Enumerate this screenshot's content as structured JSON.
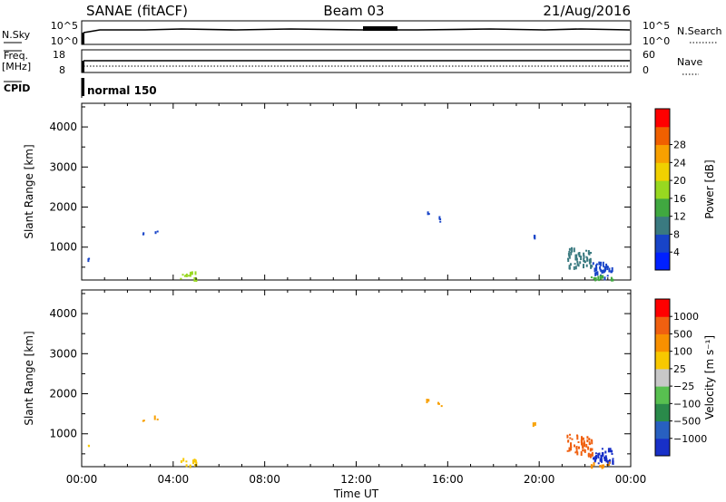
{
  "header": {
    "station": "SANAE (fitACF)",
    "beam": "Beam 03",
    "date": "21/Aug/2016"
  },
  "top_panels": {
    "nsky_label": "N.Sky",
    "nsearch_label": "N.Search",
    "nsky_ticks": [
      "10^5",
      "10^0"
    ],
    "nsearch_ticks": [
      "10^5",
      "10^0"
    ],
    "freq_label_1": "Freq.",
    "freq_label_2": "[MHz]",
    "freq_ticks": [
      "18",
      "8"
    ],
    "nave_label": "Nave",
    "nave_ticks": [
      "60",
      "0"
    ],
    "cpid_label": "CPID",
    "cpid_value": "normal 150"
  },
  "chart_data": [
    {
      "type": "heatmap",
      "name": "power-panel",
      "ylabel": "Slant Range [km]",
      "xlabel": "",
      "ylim": [
        180,
        4590
      ],
      "yticks": [
        1000,
        2000,
        3000,
        4000
      ],
      "xlim_hours": [
        0,
        24
      ],
      "colorbar": {
        "label": "Power [dB]",
        "tick_labels": [
          "4",
          "8",
          "12",
          "16",
          "20",
          "24",
          "28"
        ],
        "colors": [
          "#0020ff",
          "#1844c8",
          "#3a7a80",
          "#40a840",
          "#98d820",
          "#f0d000",
          "#f8a000",
          "#f06000",
          "#ff0000"
        ]
      },
      "echo_clusters": [
        {
          "t": [
            2.6,
            2.72
          ],
          "r": [
            1300,
            1380
          ],
          "color": "#1844c8"
        },
        {
          "t": [
            3.15,
            3.3
          ],
          "r": [
            1380,
            1460
          ],
          "color": "#1844c8"
        },
        {
          "t": [
            0.25,
            0.3
          ],
          "r": [
            700,
            740
          ],
          "color": "#1844c8"
        },
        {
          "t": [
            15.05,
            15.15
          ],
          "r": [
            1850,
            1900
          ],
          "color": "#1844c8"
        },
        {
          "t": [
            15.55,
            15.75
          ],
          "r": [
            1650,
            1800
          ],
          "color": "#1844c8"
        },
        {
          "t": [
            19.7,
            19.85
          ],
          "r": [
            1250,
            1320
          ],
          "color": "#1844c8"
        },
        {
          "t": [
            21.2,
            22.3
          ],
          "r": [
            500,
            1000
          ],
          "color": "#3a7a80"
        },
        {
          "t": [
            22.3,
            23.2
          ],
          "r": [
            250,
            650
          ],
          "color": "#1844c8"
        },
        {
          "t": [
            22.2,
            23.2
          ],
          "r": [
            190,
            310
          ],
          "color": "#40a840"
        },
        {
          "t": [
            4.3,
            5.0
          ],
          "r": [
            200,
            400
          ],
          "color": "#98d820"
        }
      ]
    },
    {
      "type": "heatmap",
      "name": "velocity-panel",
      "ylabel": "Slant Range [km]",
      "xlabel": "Time UT",
      "ylim": [
        180,
        4590
      ],
      "yticks": [
        1000,
        2000,
        3000,
        4000
      ],
      "xlim_hours": [
        0,
        24
      ],
      "xtick_labels": [
        "00:00",
        "04:00",
        "08:00",
        "12:00",
        "16:00",
        "20:00",
        "00:00"
      ],
      "colorbar": {
        "label": "Velocity [m s⁻¹]",
        "tick_labels": [
          "1000",
          "500",
          "100",
          "25",
          "−25",
          "−100",
          "−500",
          "−1000"
        ],
        "colors": [
          "#1830c8",
          "#2860c0",
          "#2a8a4a",
          "#58c050",
          "#c8c8c8",
          "#f8c800",
          "#f89000",
          "#f06010",
          "#ff0000"
        ]
      },
      "echo_clusters": [
        {
          "t": [
            2.6,
            2.72
          ],
          "r": [
            1300,
            1380
          ],
          "color": "#f8a000"
        },
        {
          "t": [
            3.15,
            3.3
          ],
          "r": [
            1380,
            1460
          ],
          "color": "#f8a000"
        },
        {
          "t": [
            0.25,
            0.3
          ],
          "r": [
            700,
            740
          ],
          "color": "#f8c800"
        },
        {
          "t": [
            15.05,
            15.15
          ],
          "r": [
            1850,
            1900
          ],
          "color": "#f8a000"
        },
        {
          "t": [
            15.55,
            15.75
          ],
          "r": [
            1650,
            1800
          ],
          "color": "#f8a000"
        },
        {
          "t": [
            19.7,
            19.85
          ],
          "r": [
            1250,
            1320
          ],
          "color": "#f8a000"
        },
        {
          "t": [
            21.2,
            22.3
          ],
          "r": [
            500,
            1000
          ],
          "color": "#f06010"
        },
        {
          "t": [
            22.3,
            23.2
          ],
          "r": [
            250,
            650
          ],
          "color": "#1830c8"
        },
        {
          "t": [
            22.2,
            23.2
          ],
          "r": [
            190,
            310
          ],
          "color": "#f89000"
        },
        {
          "t": [
            4.3,
            5.0
          ],
          "r": [
            200,
            400
          ],
          "color": "#f8c800"
        }
      ]
    }
  ]
}
